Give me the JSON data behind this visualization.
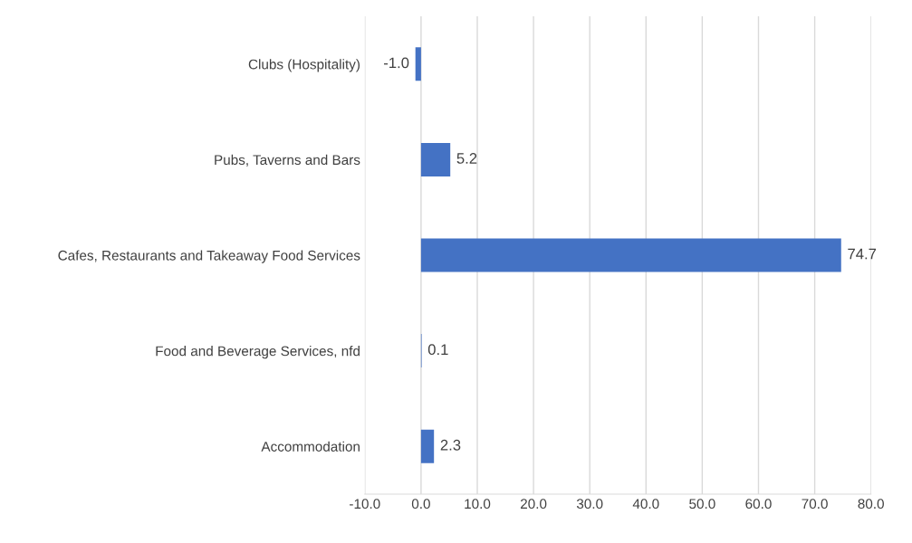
{
  "chart_data": {
    "type": "bar",
    "orientation": "horizontal",
    "categories": [
      "Clubs (Hospitality)",
      "Pubs, Taverns and Bars",
      "Cafes, Restaurants and Takeaway Food Services",
      "Food and Beverage Services, nfd",
      "Accommodation"
    ],
    "values": [
      -1.0,
      5.2,
      74.7,
      0.1,
      2.3
    ],
    "color": "#4472c4",
    "xlim": [
      -10,
      80
    ],
    "xticks": [
      {
        "value": -10,
        "label": "-10.0"
      },
      {
        "value": 0,
        "label": "0.0"
      },
      {
        "value": 10,
        "label": "10.0"
      },
      {
        "value": 20,
        "label": "20.0"
      },
      {
        "value": 30,
        "label": "30.0"
      },
      {
        "value": 40,
        "label": "40.0"
      },
      {
        "value": 50,
        "label": "50.0"
      },
      {
        "value": 60,
        "label": "60.0"
      },
      {
        "value": 70,
        "label": "70.0"
      },
      {
        "value": 80,
        "label": "80.0"
      }
    ],
    "value_labels": [
      "-1.0",
      "5.2",
      "74.7",
      "0.1",
      "2.3"
    ],
    "grid": "x"
  }
}
